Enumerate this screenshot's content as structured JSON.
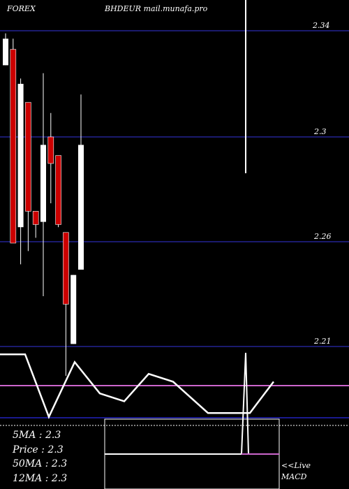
{
  "header": {
    "left": "FOREX",
    "center": "BHDEUR mail.munafa.pro"
  },
  "colors": {
    "up": "#ffffff",
    "down": "#cc0000",
    "grid": "#1a1a6e",
    "ma_line": "#cc66cc",
    "bg": "#000000"
  },
  "chart_data": [
    {
      "type": "candlestick",
      "y_ticks": [
        2.34,
        2.3,
        2.26,
        2.21
      ],
      "ylim": [
        2.21,
        2.345
      ],
      "candles": [
        {
          "open": 2.327,
          "close": 2.337,
          "high": 2.339,
          "low": 2.327,
          "dir": "up"
        },
        {
          "open": 2.333,
          "close": 2.26,
          "high": 2.337,
          "low": 2.26,
          "dir": "down"
        },
        {
          "open": 2.266,
          "close": 2.32,
          "high": 2.322,
          "low": 2.252,
          "dir": "up"
        },
        {
          "open": 2.313,
          "close": 2.272,
          "high": 2.313,
          "low": 2.257,
          "dir": "down"
        },
        {
          "open": 2.272,
          "close": 2.267,
          "high": 2.272,
          "low": 2.262,
          "dir": "down"
        },
        {
          "open": 2.268,
          "close": 2.297,
          "high": 2.324,
          "low": 2.24,
          "dir": "up"
        },
        {
          "open": 2.3,
          "close": 2.29,
          "high": 2.309,
          "low": 2.275,
          "dir": "down"
        },
        {
          "open": 2.293,
          "close": 2.267,
          "high": 2.293,
          "low": 2.266,
          "dir": "down"
        },
        {
          "open": 2.264,
          "close": 2.237,
          "high": 2.264,
          "low": 2.21,
          "dir": "down"
        },
        {
          "open": 2.222,
          "close": 2.248,
          "high": 2.248,
          "low": 2.222,
          "dir": "up"
        },
        {
          "open": 2.25,
          "close": 2.297,
          "high": 2.316,
          "low": 2.25,
          "dir": "up"
        }
      ]
    },
    {
      "type": "line",
      "name": "MACD",
      "y": [
        0.8,
        0.8,
        -0.8,
        0.6,
        -0.2,
        -0.4,
        0.3,
        0.1,
        -0.7,
        -0.7,
        0.1
      ]
    }
  ],
  "stats": [
    {
      "label": "5MA : 2.3"
    },
    {
      "label": "Price  : 2.3"
    },
    {
      "label": "50MA : 2.3"
    },
    {
      "label": "12MA : 2.3"
    }
  ],
  "live": {
    "line1": "<<Live",
    "line2": "MACD"
  }
}
